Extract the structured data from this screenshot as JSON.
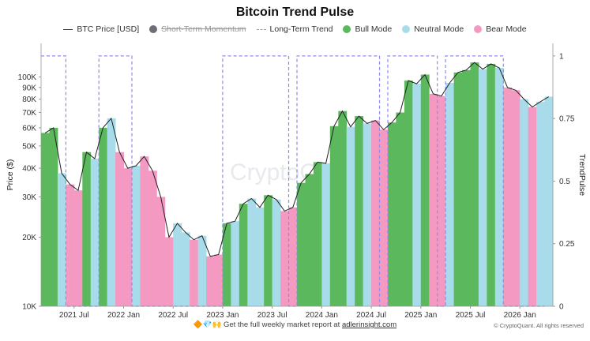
{
  "chart_data": {
    "type": "bar",
    "title": "Bitcoin Trend Pulse",
    "ylabel": "Price ($)",
    "y2label": "TrendPulse",
    "y_scale": "log",
    "ylim": [
      10000,
      140000
    ],
    "y2lim": [
      0,
      1.05
    ],
    "xlim": [
      "2021-03",
      "2026-05"
    ],
    "x_ticks": [
      "2021 Jul",
      "2022 Jan",
      "2022 Jul",
      "2023 Jan",
      "2023 Jul",
      "2024 Jan",
      "2024 Jul",
      "2025 Jan",
      "2025 Jul",
      "2026 Jan"
    ],
    "y_ticks": [
      {
        "value": 10000,
        "label": "10K"
      },
      {
        "value": 20000,
        "label": "20K"
      },
      {
        "value": 30000,
        "label": "30K"
      },
      {
        "value": 40000,
        "label": "40K"
      },
      {
        "value": 50000,
        "label": "50K"
      },
      {
        "value": 60000,
        "label": "60K"
      },
      {
        "value": 70000,
        "label": "70K"
      },
      {
        "value": 80000,
        "label": "80K"
      },
      {
        "value": 90000,
        "label": "90K"
      },
      {
        "value": 100000,
        "label": "100K"
      }
    ],
    "y2_ticks": [
      {
        "value": 0,
        "label": "0"
      },
      {
        "value": 0.25,
        "label": "0.25"
      },
      {
        "value": 0.5,
        "label": "0.5"
      },
      {
        "value": 0.75,
        "label": "0.75"
      },
      {
        "value": 1,
        "label": "1"
      }
    ],
    "legend": [
      {
        "name": "BTC Price [USD]",
        "kind": "line",
        "color": "#222222"
      },
      {
        "name": "Short-Term Momentum",
        "kind": "dot-strike",
        "color": "#6e6e78"
      },
      {
        "name": "Long-Term Trend",
        "kind": "dash",
        "color": "#8b8bf0"
      },
      {
        "name": "Bull Mode",
        "kind": "dot",
        "color": "#5cb85c"
      },
      {
        "name": "Neutral Mode",
        "kind": "dot",
        "color": "#a8dcea"
      },
      {
        "name": "Bear Mode",
        "kind": "dot",
        "color": "#f49ac2"
      }
    ],
    "mode_colors": {
      "bull": "#5cb85c",
      "neutral": "#a8dcea",
      "bear": "#f49ac2"
    },
    "price_series": [
      [
        "2021-03",
        57000
      ],
      [
        "2021-04",
        60000
      ],
      [
        "2021-05",
        38000
      ],
      [
        "2021-06",
        34000
      ],
      [
        "2021-07",
        32000
      ],
      [
        "2021-08",
        47000
      ],
      [
        "2021-09",
        44000
      ],
      [
        "2021-10",
        60000
      ],
      [
        "2021-11",
        66000
      ],
      [
        "2021-12",
        47000
      ],
      [
        "2022-01",
        40000
      ],
      [
        "2022-02",
        41000
      ],
      [
        "2022-03",
        45000
      ],
      [
        "2022-04",
        39000
      ],
      [
        "2022-05",
        30000
      ],
      [
        "2022-06",
        20000
      ],
      [
        "2022-07",
        23000
      ],
      [
        "2022-08",
        21000
      ],
      [
        "2022-09",
        19500
      ],
      [
        "2022-10",
        20300
      ],
      [
        "2022-11",
        16500
      ],
      [
        "2022-12",
        16800
      ],
      [
        "2023-01",
        23000
      ],
      [
        "2023-02",
        23500
      ],
      [
        "2023-03",
        28000
      ],
      [
        "2023-04",
        29500
      ],
      [
        "2023-05",
        27000
      ],
      [
        "2023-06",
        30500
      ],
      [
        "2023-07",
        29200
      ],
      [
        "2023-08",
        26000
      ],
      [
        "2023-09",
        27000
      ],
      [
        "2023-10",
        34500
      ],
      [
        "2023-11",
        37700
      ],
      [
        "2023-12",
        42500
      ],
      [
        "2024-01",
        42000
      ],
      [
        "2024-02",
        61000
      ],
      [
        "2024-03",
        71000
      ],
      [
        "2024-04",
        60600
      ],
      [
        "2024-05",
        67500
      ],
      [
        "2024-06",
        62700
      ],
      [
        "2024-07",
        64600
      ],
      [
        "2024-08",
        58900
      ],
      [
        "2024-09",
        63300
      ],
      [
        "2024-10",
        70000
      ],
      [
        "2024-11",
        96400
      ],
      [
        "2024-12",
        93400
      ],
      [
        "2025-01",
        102400
      ],
      [
        "2025-02",
        84400
      ],
      [
        "2025-03",
        82500
      ],
      [
        "2025-04",
        94200
      ],
      [
        "2025-05",
        104600
      ],
      [
        "2025-06",
        107100
      ],
      [
        "2025-07",
        115700
      ],
      [
        "2025-08",
        108200
      ],
      [
        "2025-09",
        114000
      ],
      [
        "2025-10",
        109500
      ],
      [
        "2025-11",
        90000
      ],
      [
        "2025-12",
        87500
      ],
      [
        "2026-01",
        80000
      ],
      [
        "2026-02",
        74000
      ],
      [
        "2026-03",
        78000
      ],
      [
        "2026-04",
        82000
      ]
    ],
    "modes": [
      [
        "2021-03",
        "bull"
      ],
      [
        "2021-04",
        "bull"
      ],
      [
        "2021-05",
        "neutral"
      ],
      [
        "2021-06",
        "bear"
      ],
      [
        "2021-07",
        "bear"
      ],
      [
        "2021-08",
        "bull"
      ],
      [
        "2021-09",
        "neutral"
      ],
      [
        "2021-10",
        "bull"
      ],
      [
        "2021-11",
        "neutral"
      ],
      [
        "2021-12",
        "bear"
      ],
      [
        "2022-01",
        "bear"
      ],
      [
        "2022-02",
        "neutral"
      ],
      [
        "2022-03",
        "bear"
      ],
      [
        "2022-04",
        "bear"
      ],
      [
        "2022-05",
        "bear"
      ],
      [
        "2022-06",
        "bear"
      ],
      [
        "2022-07",
        "neutral"
      ],
      [
        "2022-08",
        "neutral"
      ],
      [
        "2022-09",
        "bear"
      ],
      [
        "2022-10",
        "neutral"
      ],
      [
        "2022-11",
        "bear"
      ],
      [
        "2022-12",
        "bear"
      ],
      [
        "2023-01",
        "bull"
      ],
      [
        "2023-02",
        "neutral"
      ],
      [
        "2023-03",
        "bull"
      ],
      [
        "2023-04",
        "neutral"
      ],
      [
        "2023-05",
        "neutral"
      ],
      [
        "2023-06",
        "bull"
      ],
      [
        "2023-07",
        "neutral"
      ],
      [
        "2023-08",
        "bear"
      ],
      [
        "2023-09",
        "bear"
      ],
      [
        "2023-10",
        "bull"
      ],
      [
        "2023-11",
        "bull"
      ],
      [
        "2023-12",
        "bull"
      ],
      [
        "2024-01",
        "neutral"
      ],
      [
        "2024-02",
        "bull"
      ],
      [
        "2024-03",
        "bull"
      ],
      [
        "2024-04",
        "neutral"
      ],
      [
        "2024-05",
        "bull"
      ],
      [
        "2024-06",
        "neutral"
      ],
      [
        "2024-07",
        "bear"
      ],
      [
        "2024-08",
        "bear"
      ],
      [
        "2024-09",
        "bull"
      ],
      [
        "2024-10",
        "bull"
      ],
      [
        "2024-11",
        "bull"
      ],
      [
        "2024-12",
        "neutral"
      ],
      [
        "2025-01",
        "bull"
      ],
      [
        "2025-02",
        "bear"
      ],
      [
        "2025-03",
        "bear"
      ],
      [
        "2025-04",
        "neutral"
      ],
      [
        "2025-05",
        "bull"
      ],
      [
        "2025-06",
        "bull"
      ],
      [
        "2025-07",
        "bull"
      ],
      [
        "2025-08",
        "neutral"
      ],
      [
        "2025-09",
        "bull"
      ],
      [
        "2025-10",
        "neutral"
      ],
      [
        "2025-11",
        "bear"
      ],
      [
        "2025-12",
        "bear"
      ],
      [
        "2026-01",
        "neutral"
      ],
      [
        "2026-02",
        "bear"
      ],
      [
        "2026-03",
        "neutral"
      ],
      [
        "2026-04",
        "neutral"
      ]
    ],
    "long_term_trend": [
      [
        "2021-03",
        1
      ],
      [
        "2021-05",
        1
      ],
      [
        "2021-06",
        0
      ],
      [
        "2021-09",
        0
      ],
      [
        "2021-10",
        1
      ],
      [
        "2022-01",
        1
      ],
      [
        "2022-02",
        0
      ],
      [
        "2022-12",
        0
      ],
      [
        "2023-01",
        1
      ],
      [
        "2023-08",
        1
      ],
      [
        "2023-09",
        0
      ],
      [
        "2023-10",
        1
      ],
      [
        "2024-07",
        1
      ],
      [
        "2024-08",
        0
      ],
      [
        "2024-09",
        1
      ],
      [
        "2025-02",
        1
      ],
      [
        "2025-03",
        0
      ],
      [
        "2025-04",
        1
      ],
      [
        "2025-10",
        1
      ],
      [
        "2025-11",
        0
      ],
      [
        "2026-04",
        0
      ]
    ],
    "watermark": "CryptoQuant"
  },
  "footer": {
    "emoji": "🔶💎🙌",
    "text": "Get the full weekly market report at",
    "link": "adlerinsight.com"
  },
  "credit": "© CryptoQuant. All rights reserved"
}
